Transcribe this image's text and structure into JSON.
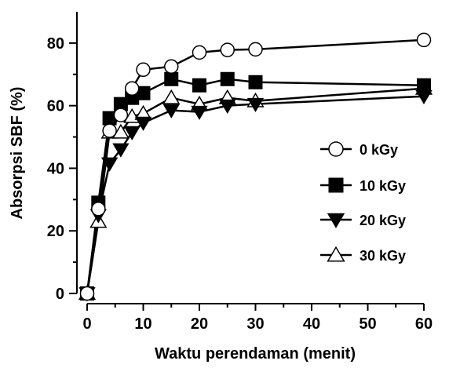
{
  "chart_data": {
    "type": "line",
    "title": "",
    "xlabel": "Waktu perendaman (menit)",
    "ylabel": "Absorpsi SBF (%)",
    "xlim": [
      0,
      60
    ],
    "ylim": [
      0,
      90
    ],
    "xticks": [
      0,
      10,
      20,
      30,
      40,
      50,
      60
    ],
    "yticks": [
      0,
      20,
      40,
      60,
      80
    ],
    "grid": false,
    "legend_position": "right",
    "series": [
      {
        "name": "0 kGy",
        "marker": "circle-open",
        "points": [
          [
            0,
            0
          ],
          [
            2,
            27
          ],
          [
            4,
            52
          ],
          [
            6,
            57
          ],
          [
            8,
            65.5
          ],
          [
            10,
            71.5
          ],
          [
            15,
            72.5
          ],
          [
            20,
            77
          ],
          [
            25,
            77.8
          ],
          [
            30,
            78
          ],
          [
            60,
            81
          ]
        ]
      },
      {
        "name": "10 kGy",
        "marker": "square-filled",
        "points": [
          [
            0,
            0
          ],
          [
            2,
            29
          ],
          [
            4,
            56
          ],
          [
            6,
            60.5
          ],
          [
            8,
            62.5
          ],
          [
            10,
            64
          ],
          [
            15,
            68.5
          ],
          [
            20,
            66.5
          ],
          [
            25,
            68.5
          ],
          [
            30,
            67.5
          ],
          [
            60,
            66.5
          ]
        ]
      },
      {
        "name": "20 kGy",
        "marker": "triangle-down-filled",
        "points": [
          [
            0,
            0
          ],
          [
            2,
            25
          ],
          [
            4,
            41.5
          ],
          [
            6,
            46
          ],
          [
            8,
            51.5
          ],
          [
            10,
            54.5
          ],
          [
            15,
            58.5
          ],
          [
            20,
            58
          ],
          [
            25,
            60
          ],
          [
            30,
            60.5
          ],
          [
            60,
            63
          ]
        ]
      },
      {
        "name": "30 kGy",
        "marker": "triangle-up-open",
        "points": [
          [
            0,
            0
          ],
          [
            2,
            23
          ],
          [
            4,
            51.5
          ],
          [
            6,
            51.5
          ],
          [
            8,
            56.5
          ],
          [
            10,
            57.5
          ],
          [
            15,
            62.5
          ],
          [
            20,
            60.5
          ],
          [
            25,
            62.5
          ],
          [
            30,
            61.5
          ],
          [
            60,
            65.5
          ]
        ]
      }
    ]
  }
}
